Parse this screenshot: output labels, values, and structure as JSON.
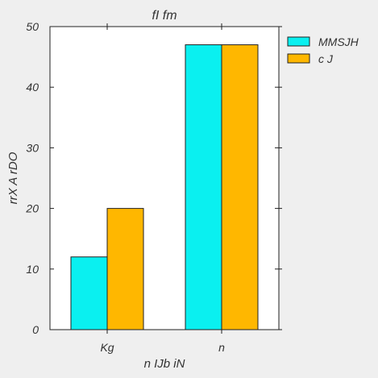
{
  "chart_data": {
    "type": "bar",
    "title": "fI fm",
    "xlabel": "n IJb iN",
    "ylabel": "rrX A rDO",
    "categories": [
      "Kg",
      "n"
    ],
    "series": [
      {
        "name": "MMSJH",
        "values": [
          12,
          47
        ]
      },
      {
        "name": "c J",
        "values": [
          20,
          47
        ]
      }
    ],
    "ylim": [
      0,
      50
    ],
    "yticks": [
      0,
      10,
      20,
      30,
      40,
      50
    ],
    "grid": false,
    "legend_position": "outside-top-right",
    "colors": [
      "#0af0f0",
      "#ffb700"
    ]
  }
}
